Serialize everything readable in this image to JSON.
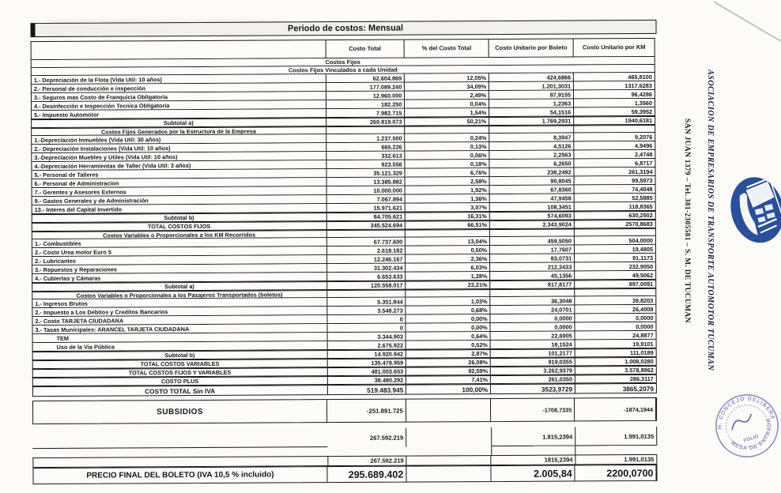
{
  "document": {
    "title": "Periodo de costos: Mensual",
    "columns": [
      "Costo Total",
      "% del Costo Total",
      "Costo Unitario por Boleto",
      "Costo Unitario por KM"
    ]
  },
  "table": {
    "rows": [
      {
        "type": "band_full",
        "label": "Costos Fijos"
      },
      {
        "type": "band_full",
        "label": "Costos Fijos Vinculados a cada Unidad"
      },
      {
        "type": "item",
        "label": "1.- Depreciación de la Flota (Vida Util: 10 años)",
        "total": "62.604.869",
        "pct": "12,05%",
        "boleto": "424,6866",
        "km": "465,8100"
      },
      {
        "type": "item",
        "label": "2.- Personal de conducción e inspección",
        "total": "177.089.240",
        "pct": "34,09%",
        "boleto": "1.201,3031",
        "km": "1317,6283"
      },
      {
        "type": "item",
        "label": "3.- Seguros mas Costo de Franquicia Obligatoria",
        "total": "12.960.000",
        "pct": "2,49%",
        "boleto": "87,9155",
        "km": "96,4286"
      },
      {
        "type": "item",
        "label": "4.- Desinfección e Inspección Tecnica Obligatoria",
        "total": "182.250",
        "pct": "0,04%",
        "boleto": "1,2363",
        "km": "1,3560"
      },
      {
        "type": "item",
        "label": "5.- Impuesto Automotor",
        "total": "7.982.715",
        "pct": "1,54%",
        "boleto": "54,1516",
        "km": "59,3952"
      },
      {
        "type": "subtotal",
        "label": "Subtotal a)",
        "total": "260.819.073",
        "pct": "50,21%",
        "boleto": "1.769,2931",
        "km": "1940,6181"
      },
      {
        "type": "band",
        "label": "Costos Fijos Generados por la Estructura de la Empresa"
      },
      {
        "type": "item",
        "label": "1.-Depreciación Inmuebles (Vida Util: 30 años)",
        "total": "1.237.500",
        "pct": "0,24%",
        "boleto": "8,3947",
        "km": "9,2076"
      },
      {
        "type": "item",
        "label": "2.- Depreciación Instalaciones (Vida Util: 10 años)",
        "total": "665.226",
        "pct": "0,13%",
        "boleto": "4,5126",
        "km": "4,9496"
      },
      {
        "type": "item",
        "label": "3.-Depreciación Muebles y Utiles (Vida Util: 10 años)",
        "total": "332.613",
        "pct": "0,06%",
        "boleto": "2,2563",
        "km": "2,4748"
      },
      {
        "type": "item",
        "label": "4.-Depreciación Herramientas de Taller (Vida Util: 3 años)",
        "total": "923.556",
        "pct": "0,18%",
        "boleto": "6,2650",
        "km": "6,8717"
      },
      {
        "type": "item",
        "label": "5.- Personal de Talleres",
        "total": "35.121.329",
        "pct": "6,76%",
        "boleto": "238,2492",
        "km": "261,3194"
      },
      {
        "type": "item",
        "label": "6.- Personal de Administracion",
        "total": "13.385.882",
        "pct": "2,58%",
        "boleto": "90,8045",
        "km": "99,5973"
      },
      {
        "type": "item",
        "label": "7.- Gerentes y Asesores Externos",
        "total": "10.000.000",
        "pct": "1,92%",
        "boleto": "67,8360",
        "km": "74,4048"
      },
      {
        "type": "item",
        "label": "9.- Gastos Generales y de Administración",
        "total": "7.067.894",
        "pct": "1,36%",
        "boleto": "47,9458",
        "km": "52,5885"
      },
      {
        "type": "item",
        "label": "13.- Interes del Capital Invertido",
        "total": "15.971.621",
        "pct": "3,07%",
        "boleto": "108,3451",
        "km": "118,8365"
      },
      {
        "type": "subtotal",
        "label": "Subtotal b)",
        "total": "84.705.621",
        "pct": "16,31%",
        "boleto": "574,6093",
        "km": "630,2502"
      },
      {
        "type": "total",
        "label": "TOTAL COSTOS FIJOS",
        "total": "345.524.694",
        "pct": "66,51%",
        "boleto": "2.343,9024",
        "km": "2570,8683"
      },
      {
        "type": "band",
        "label": "Costos Variables o Proporcionales a los KM Recorridos"
      },
      {
        "type": "item",
        "label": "1.- Combustibles",
        "total": "67.737.600",
        "pct": "13,04%",
        "boleto": "459,5050",
        "km": "504,0000"
      },
      {
        "type": "item",
        "label": "2.- Costo Urea motor Euro 5",
        "total": "2.618.182",
        "pct": "0,50%",
        "boleto": "17,7607",
        "km": "19,4805"
      },
      {
        "type": "item",
        "label": "2.- Lubricantes",
        "total": "12.246.167",
        "pct": "2,36%",
        "boleto": "83,0731",
        "km": "91,1173"
      },
      {
        "type": "item",
        "label": "3.- Repuestos y Reparaciones",
        "total": "31.302.434",
        "pct": "6,03%",
        "boleto": "212,3433",
        "km": "232,9050"
      },
      {
        "type": "item",
        "label": "4.- Cubiertas y Cámaras",
        "total": "6.653.633",
        "pct": "1,28%",
        "boleto": "45,1356",
        "km": "49,5062"
      },
      {
        "type": "subtotal",
        "label": "Subtotal a)",
        "total": "120.558.017",
        "pct": "23,21%",
        "boleto": "817,8177",
        "km": "897,0091"
      },
      {
        "type": "band",
        "label": "Costos Variables o Proporcionales a los Pasajeros Transportados (boletos)"
      },
      {
        "type": "item",
        "label": "1.- Ingresos Brutos",
        "total": "5.351.844",
        "pct": "1,03%",
        "boleto": "36,3048",
        "km": "39,8203"
      },
      {
        "type": "item",
        "label": "2.- Impuesto a Los Debitos y Creditos Bancarios",
        "total": "3.548.273",
        "pct": "0,68%",
        "boleto": "24,0701",
        "km": "26,4008"
      },
      {
        "type": "item",
        "label": "2.- Costo TARJETA CIUDADANA",
        "total": "0",
        "pct": "0,00%",
        "boleto": "0,0000",
        "km": "0,0000"
      },
      {
        "type": "item",
        "label": "3.- Tasas Municipales: ARANCEL TARJETA CIUDADANA",
        "total": "0",
        "pct": "0,00%",
        "boleto": "0,0000",
        "km": "0,0000"
      },
      {
        "type": "item_indent",
        "label": "TEM",
        "total": "3.344.903",
        "pct": "0,64%",
        "boleto": "22,6905",
        "km": "24,8877"
      },
      {
        "type": "item_indent",
        "label": "Uso de la Via Pública",
        "total": "2.675.922",
        "pct": "0,52%",
        "boleto": "18,1524",
        "km": "19,9101"
      },
      {
        "type": "subtotal",
        "label": "Subtotal b)",
        "total": "14.920.942",
        "pct": "2,87%",
        "boleto": "101,2177",
        "km": "111,0189"
      },
      {
        "type": "total",
        "label": "TOTAL COSTOS VARIABLES",
        "total": "135.478.959",
        "pct": "26,08%",
        "boleto": "919,0355",
        "km": "1.008,0280"
      },
      {
        "type": "total",
        "label": "TOTAL COSTOS FIJOS Y VARIABLES",
        "total": "481.003.653",
        "pct": "92,59%",
        "boleto": "3.262,9379",
        "km": "3.578,8962"
      },
      {
        "type": "total",
        "label": "COSTO PLUS",
        "total": "38.480.292",
        "pct": "7,41%",
        "boleto": "261,0350",
        "km": "286,3117"
      },
      {
        "type": "total_big",
        "label": "COSTO TOTAL Sin IVA",
        "total": "519.483.945",
        "pct": "100,00%",
        "boleto": "3523,9729",
        "km": "3865,2079"
      },
      {
        "type": "gap"
      },
      {
        "type": "subsidios",
        "label": "SUBSIDIOS",
        "total": "-251.891.725",
        "pct": "",
        "boleto": "-1708,7335",
        "km": "-1874,1944"
      },
      {
        "type": "gap2"
      },
      {
        "type": "loose",
        "label": "",
        "total": "267.592.219",
        "pct": "",
        "boleto": "1.815,2394",
        "km": "1.991,0135"
      },
      {
        "type": "spacer"
      },
      {
        "type": "plain",
        "label": "",
        "total": "267.592.219",
        "pct": "",
        "boleto": "1815,2394",
        "km": "1.991,0135"
      },
      {
        "type": "final",
        "label": "PRECIO FINAL DEL BOLETO (IVA 10,5 % incluido)",
        "total": "295.689.402",
        "pct": "",
        "boleto": "2.005,84",
        "km": "2200,0700"
      }
    ]
  },
  "sidebar": {
    "org_name": "ASOCIACION DE EMPRESARIOS DE TRANSPORTE AUTOMOTOR TUCUMAN",
    "address": "SAN JUAN 1379 – Tel. 381-2305581 – S. M. DE TUCUMAN"
  },
  "stamp": {
    "arc_top": "H. CONCEJO DELIBERANTE",
    "arc_bottom": "MESA DE ENTRADA",
    "folio": "FOLIO"
  },
  "logo": {
    "name": "bus-association-logo"
  },
  "colors": {
    "paper": "#fcfbf7",
    "ink": "#15151a",
    "sidebar_ink": "#141a38",
    "logo_blue": "#2a4f9b",
    "stamp_blue": "#6a6fb5"
  }
}
